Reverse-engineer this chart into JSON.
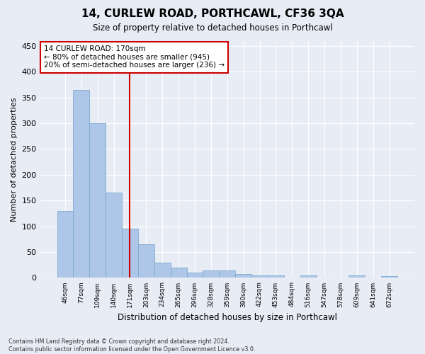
{
  "title": "14, CURLEW ROAD, PORTHCAWL, CF36 3QA",
  "subtitle": "Size of property relative to detached houses in Porthcawl",
  "xlabel": "Distribution of detached houses by size in Porthcawl",
  "ylabel": "Number of detached properties",
  "bar_labels": [
    "46sqm",
    "77sqm",
    "109sqm",
    "140sqm",
    "171sqm",
    "203sqm",
    "234sqm",
    "265sqm",
    "296sqm",
    "328sqm",
    "359sqm",
    "390sqm",
    "422sqm",
    "453sqm",
    "484sqm",
    "516sqm",
    "547sqm",
    "578sqm",
    "609sqm",
    "641sqm",
    "672sqm"
  ],
  "bar_values": [
    130,
    365,
    300,
    165,
    95,
    65,
    30,
    20,
    10,
    15,
    15,
    8,
    5,
    5,
    0,
    5,
    0,
    0,
    5,
    0,
    3
  ],
  "bar_color": "#aec6e8",
  "bar_edge_color": "#7aaad0",
  "vline_color": "#cc0000",
  "annotation_text": "14 CURLEW ROAD: 170sqm\n← 80% of detached houses are smaller (945)\n20% of semi-detached houses are larger (236) →",
  "annotation_box_color": "#ffffff",
  "annotation_box_edge": "#cc0000",
  "ylim": [
    0,
    460
  ],
  "yticks": [
    0,
    50,
    100,
    150,
    200,
    250,
    300,
    350,
    400,
    450
  ],
  "footer_text": "Contains HM Land Registry data © Crown copyright and database right 2024.\nContains public sector information licensed under the Open Government Licence v3.0.",
  "bg_color": "#e8ecf5",
  "plot_bg_color": "#e8ecf5"
}
